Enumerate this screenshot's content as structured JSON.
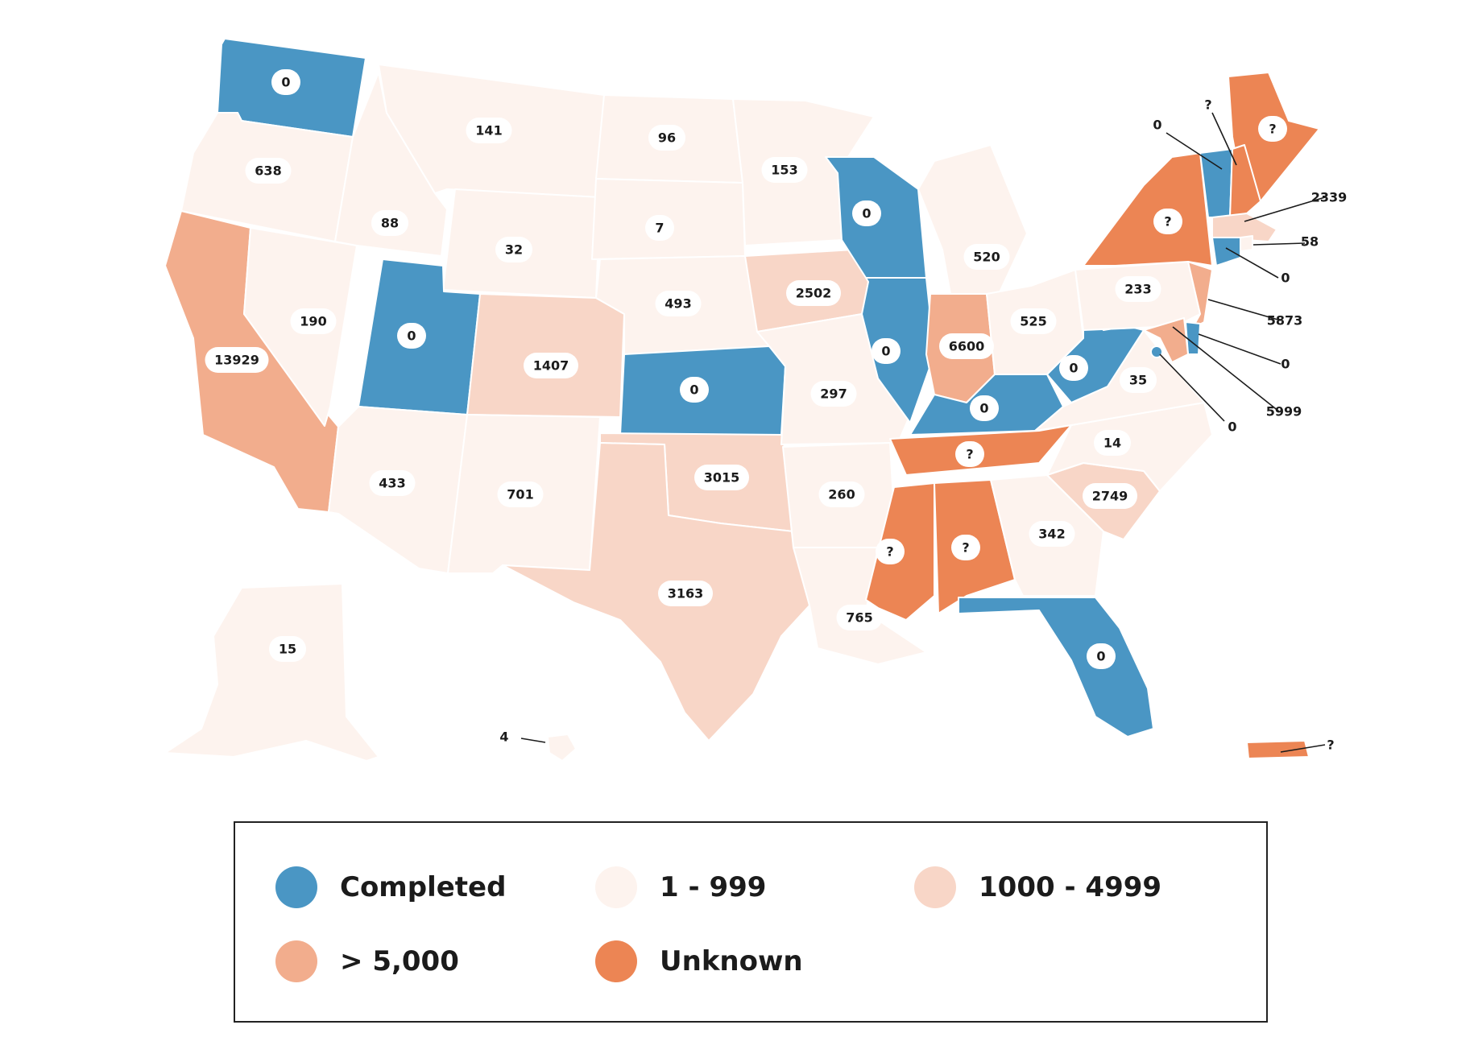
{
  "colors": {
    "completed": "#4a96c4",
    "low": "#fdf3ee",
    "mid": "#f8d6c7",
    "high": "#f2ad8d",
    "unknown": "#ec8554"
  },
  "legend": [
    {
      "key": "completed",
      "label": "Completed"
    },
    {
      "key": "low",
      "label": "1 - 999"
    },
    {
      "key": "mid",
      "label": "1000 - 4999"
    },
    {
      "key": "high",
      "label": "> 5,000"
    },
    {
      "key": "unknown",
      "label": "Unknown"
    }
  ],
  "states": [
    {
      "id": "WA",
      "value": "0",
      "category": "completed"
    },
    {
      "id": "OR",
      "value": "638",
      "category": "low"
    },
    {
      "id": "CA",
      "value": "13929",
      "category": "high"
    },
    {
      "id": "NV",
      "value": "190",
      "category": "low"
    },
    {
      "id": "ID",
      "value": "88",
      "category": "low"
    },
    {
      "id": "MT",
      "value": "141",
      "category": "low"
    },
    {
      "id": "WY",
      "value": "32",
      "category": "low"
    },
    {
      "id": "UT",
      "value": "0",
      "category": "completed"
    },
    {
      "id": "AZ",
      "value": "433",
      "category": "low"
    },
    {
      "id": "CO",
      "value": "1407",
      "category": "mid"
    },
    {
      "id": "NM",
      "value": "701",
      "category": "low"
    },
    {
      "id": "ND",
      "value": "96",
      "category": "low"
    },
    {
      "id": "SD",
      "value": "7",
      "category": "low"
    },
    {
      "id": "NE",
      "value": "493",
      "category": "low"
    },
    {
      "id": "KS",
      "value": "0",
      "category": "completed"
    },
    {
      "id": "OK",
      "value": "3015",
      "category": "mid"
    },
    {
      "id": "TX",
      "value": "3163",
      "category": "mid"
    },
    {
      "id": "MN",
      "value": "153",
      "category": "low"
    },
    {
      "id": "IA",
      "value": "2502",
      "category": "mid"
    },
    {
      "id": "MO",
      "value": "297",
      "category": "low"
    },
    {
      "id": "AR",
      "value": "260",
      "category": "low"
    },
    {
      "id": "LA",
      "value": "765",
      "category": "low"
    },
    {
      "id": "WI",
      "value": "0",
      "category": "completed"
    },
    {
      "id": "IL",
      "value": "0",
      "category": "completed"
    },
    {
      "id": "MI",
      "value": "520",
      "category": "low"
    },
    {
      "id": "IN",
      "value": "6600",
      "category": "high"
    },
    {
      "id": "OH",
      "value": "525",
      "category": "low"
    },
    {
      "id": "KY",
      "value": "0",
      "category": "completed"
    },
    {
      "id": "TN",
      "value": "?",
      "category": "unknown"
    },
    {
      "id": "MS",
      "value": "?",
      "category": "unknown"
    },
    {
      "id": "AL",
      "value": "?",
      "category": "unknown"
    },
    {
      "id": "GA",
      "value": "342",
      "category": "low"
    },
    {
      "id": "FL",
      "value": "0",
      "category": "completed"
    },
    {
      "id": "SC",
      "value": "2749",
      "category": "mid"
    },
    {
      "id": "NC",
      "value": "14",
      "category": "low"
    },
    {
      "id": "VA",
      "value": "35",
      "category": "low"
    },
    {
      "id": "WV",
      "value": "0",
      "category": "completed"
    },
    {
      "id": "PA",
      "value": "233",
      "category": "low"
    },
    {
      "id": "NY",
      "value": "?",
      "category": "unknown"
    },
    {
      "id": "ME",
      "value": "?",
      "category": "unknown"
    },
    {
      "id": "AK",
      "value": "15",
      "category": "low"
    },
    {
      "id": "VT",
      "value": "0",
      "category": "completed"
    },
    {
      "id": "NH",
      "value": "?",
      "category": "unknown"
    },
    {
      "id": "MA",
      "value": "2339",
      "category": "mid"
    },
    {
      "id": "RI",
      "value": "58",
      "category": "low"
    },
    {
      "id": "CT",
      "value": "0",
      "category": "completed"
    },
    {
      "id": "NJ",
      "value": "5873",
      "category": "high"
    },
    {
      "id": "DE",
      "value": "0",
      "category": "completed"
    },
    {
      "id": "MD",
      "value": "5999",
      "category": "high"
    },
    {
      "id": "DC",
      "value": "0",
      "category": "completed"
    },
    {
      "id": "HI",
      "value": "4",
      "category": "low"
    },
    {
      "id": "PR",
      "value": "?",
      "category": "unknown"
    }
  ]
}
